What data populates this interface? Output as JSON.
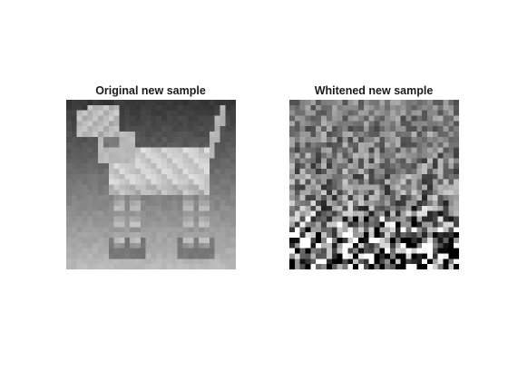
{
  "figure": {
    "background": "#ffffff",
    "title_color": "#1a1a1a"
  },
  "panels": [
    {
      "title": "Original new sample",
      "content": "grayscale 32x32 image of a standing dog (pointer/dalmatian-like) against a gradient gray background"
    },
    {
      "title": "Whitened new sample",
      "content": "grayscale 32x32 noise-like whitened image, higher contrast toward the bottom rows"
    }
  ]
}
